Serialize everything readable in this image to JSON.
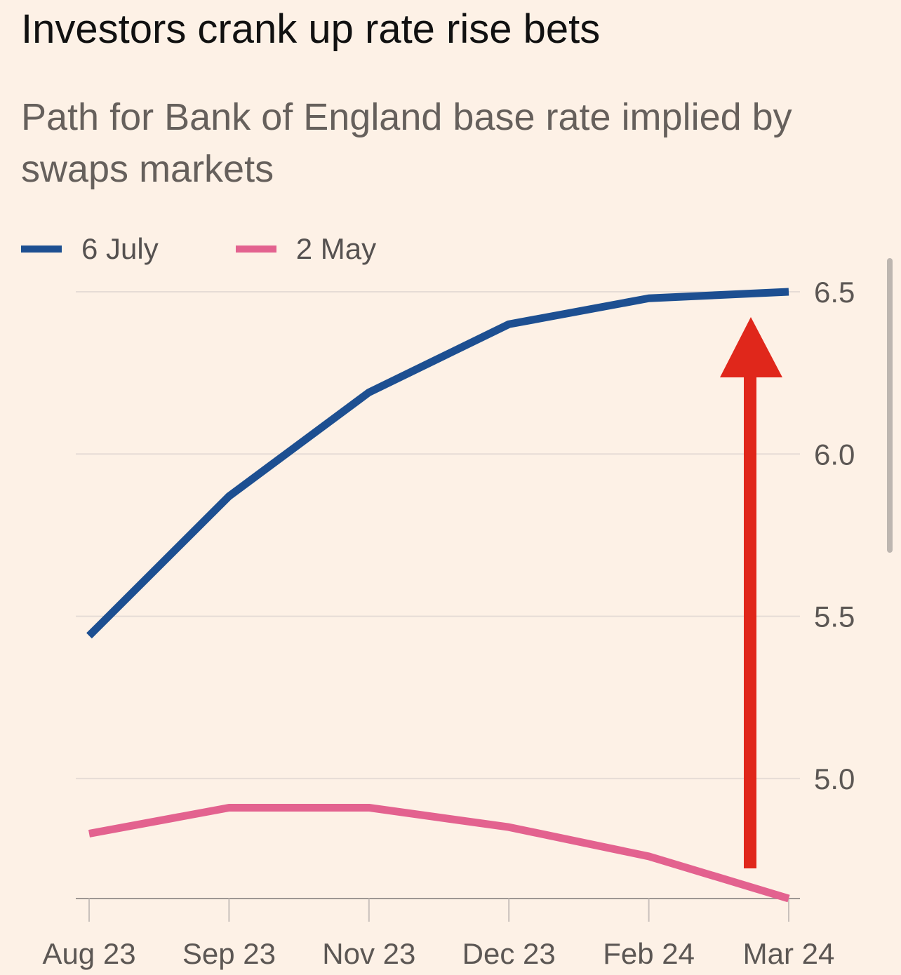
{
  "chart_data": {
    "type": "line",
    "title": "Investors crank up rate rise bets",
    "subtitle": "Path for Bank of England base rate implied by swaps markets",
    "categories": [
      "Aug 23",
      "Sep 23",
      "Nov 23",
      "Dec 23",
      "Feb 24",
      "Mar 24"
    ],
    "series": [
      {
        "name": "6 July",
        "color": "#1d4f91",
        "values": [
          5.44,
          5.87,
          6.19,
          6.4,
          6.48,
          6.5
        ]
      },
      {
        "name": "2 May",
        "color": "#e3628f",
        "values": [
          4.83,
          4.91,
          4.91,
          4.85,
          4.76,
          4.63
        ]
      }
    ],
    "y_ticks": [
      "6.5",
      "6.0",
      "5.5",
      "5.0"
    ],
    "ylim": [
      4.63,
      6.5
    ],
    "y_axis_side": "right",
    "grid": true,
    "legend_position": "top-left",
    "annotation": {
      "type": "arrow",
      "direction": "up",
      "color": "#e0271b"
    }
  }
}
